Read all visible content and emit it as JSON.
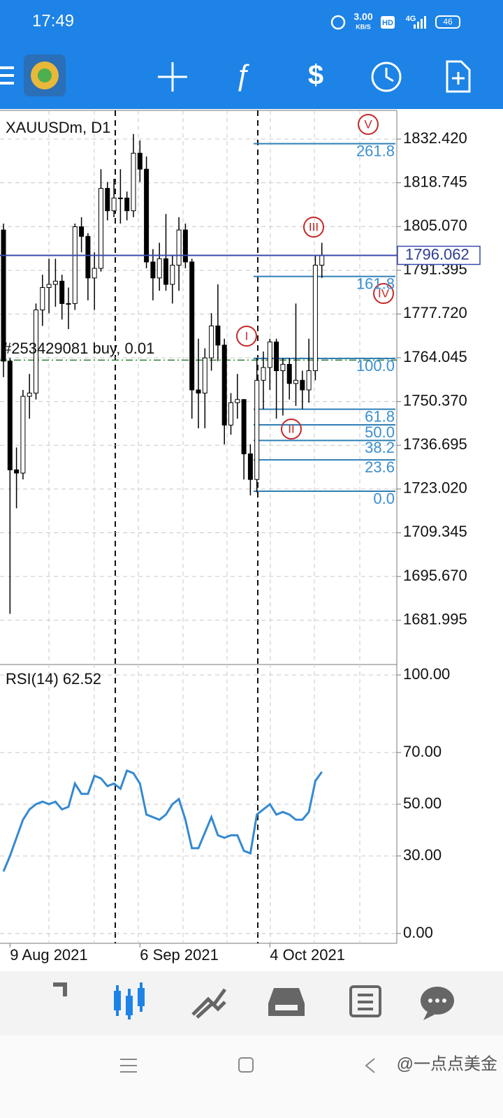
{
  "status_bar": {
    "time": "17:49",
    "speed": "3.00",
    "speed_unit": "KB/S",
    "hd": "HD",
    "network": "4G",
    "battery": "46"
  },
  "chart_data": [
    {
      "type": "candlestick",
      "title": "XAUUSDm, D1",
      "categories": [
        null,
        "9 Aug 2021",
        null,
        null,
        null,
        null,
        null,
        null,
        null,
        null,
        null,
        null,
        null,
        null,
        null,
        null,
        null,
        null,
        null,
        null,
        null,
        "6 Sep 2021",
        null,
        null,
        null,
        null,
        null,
        null,
        null,
        null,
        null,
        null,
        null,
        null,
        null,
        null,
        null,
        null,
        null,
        null,
        null,
        "4 Oct 2021",
        null,
        null,
        null,
        null,
        null,
        null,
        null,
        null
      ],
      "open": [
        1804,
        1763,
        1729,
        1728,
        1752,
        1753,
        1779,
        1786,
        1787,
        1788,
        1781,
        1781,
        1805,
        1802,
        1789,
        1792,
        1817,
        1810,
        1814,
        1814,
        1810,
        1828,
        1823,
        1794,
        1789,
        1795,
        1787,
        1793,
        1804,
        1794,
        1754,
        1753,
        1764,
        1774,
        1768,
        1743,
        1750,
        1751,
        1734,
        1726,
        1757,
        1761,
        1769,
        1760,
        1762,
        1756,
        1757,
        1754,
        1760,
        1793
      ],
      "high": [
        1806,
        1764,
        1736,
        1754,
        1759,
        1781,
        1790,
        1795,
        1795,
        1790,
        1786,
        1806,
        1808,
        1803,
        1797,
        1823,
        1819,
        1820,
        1823,
        1816,
        1834,
        1832,
        1827,
        1798,
        1800,
        1809,
        1796,
        1808,
        1806,
        1795,
        1770,
        1767,
        1778,
        1787,
        1770,
        1753,
        1759,
        1751,
        1737,
        1764,
        1766,
        1770,
        1770,
        1764,
        1764,
        1781,
        1760,
        1770,
        1796,
        1800
      ],
      "low": [
        1758,
        1684,
        1717,
        1726,
        1745,
        1751,
        1774,
        1778,
        1780,
        1776,
        1773,
        1779,
        1797,
        1782,
        1779,
        1791,
        1807,
        1808,
        1806,
        1807,
        1808,
        1819,
        1792,
        1782,
        1785,
        1785,
        1781,
        1785,
        1792,
        1745,
        1742,
        1742,
        1760,
        1763,
        1737,
        1740,
        1745,
        1726,
        1721,
        1722,
        1748,
        1754,
        1745,
        1746,
        1751,
        1749,
        1748,
        1750,
        1757,
        1789
      ],
      "close": [
        1763,
        1729,
        1728,
        1752,
        1753,
        1779,
        1786,
        1787,
        1788,
        1781,
        1781,
        1805,
        1802,
        1789,
        1792,
        1817,
        1810,
        1814,
        1814,
        1810,
        1828,
        1823,
        1794,
        1789,
        1795,
        1787,
        1793,
        1804,
        1794,
        1754,
        1753,
        1764,
        1774,
        1768,
        1743,
        1750,
        1751,
        1734,
        1726,
        1757,
        1761,
        1769,
        1760,
        1762,
        1756,
        1757,
        1754,
        1760,
        1793,
        1796
      ],
      "ylim": [
        1668.37,
        1841.38
      ],
      "yticks": [
        {
          "value": 1832.42,
          "label": "1832.420"
        },
        1818.745,
        {
          "value": 1805.07,
          "label": "1805.070"
        },
        1791.395,
        {
          "value": 1777.72,
          "label": "1777.720"
        },
        1764.045,
        {
          "value": 1750.37,
          "label": "1750.370"
        },
        1736.695,
        {
          "value": 1723.02,
          "label": "1723.020"
        },
        1709.345,
        {
          "value": 1695.67,
          "label": "1695.670"
        },
        1681.995
      ],
      "grid": true,
      "current_price": 1796.062,
      "order_label": "#253429081 buy, 0.01",
      "order_price": 1763.3,
      "fib": {
        "from": 1722.33,
        "to": 1763.83,
        "color": "#2f7fb6",
        "levels": [
          {
            "value": 0,
            "label": "0.0"
          },
          23.6,
          38.2,
          {
            "value": 50,
            "label": "50.0"
          },
          61.8,
          {
            "value": 100,
            "label": "100.0"
          },
          161.8,
          261.8
        ]
      },
      "waves": [
        "V",
        "III",
        "IV",
        "I",
        "II"
      ]
    },
    {
      "type": "line",
      "title": "RSI(14) 62.52",
      "color": "#3589d0",
      "values": [
        24,
        30,
        37,
        44,
        48,
        50,
        51,
        50,
        51,
        48,
        49,
        58,
        54,
        54,
        61,
        60,
        57,
        58,
        56,
        63,
        62,
        58,
        46,
        45,
        44,
        46,
        50,
        52,
        44,
        33,
        33,
        39,
        45,
        38,
        37,
        38,
        38,
        32,
        31,
        46,
        48,
        50,
        46,
        47,
        46,
        44,
        44,
        47,
        59,
        62.52
      ],
      "ylim": [
        -3.8,
        103.5
      ],
      "yticks": [
        {
          "value": 100,
          "label": "100.00"
        },
        {
          "value": 70,
          "label": "70.00"
        },
        {
          "value": 50,
          "label": "50.00"
        },
        {
          "value": 30,
          "label": "30.00"
        },
        {
          "value": 0,
          "label": "0.00"
        }
      ],
      "grid": true
    }
  ],
  "watermark": "@一点点美金"
}
